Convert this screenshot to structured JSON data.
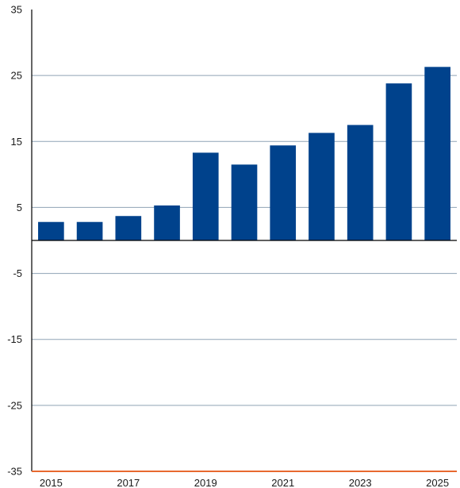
{
  "chart_data": {
    "type": "bar",
    "categories": [
      "2015",
      "2016",
      "2017",
      "2018",
      "2019",
      "2020",
      "2021",
      "2022",
      "2023",
      "2024",
      "2025"
    ],
    "values": [
      2.8,
      2.8,
      3.7,
      5.3,
      13.3,
      11.5,
      14.4,
      16.3,
      17.5,
      23.8,
      26.3
    ],
    "x_tick_labels": [
      "2015",
      "",
      "2017",
      "",
      "2019",
      "",
      "2021",
      "",
      "2023",
      "",
      "2025"
    ],
    "y_ticks": [
      35,
      25,
      15,
      5,
      -5,
      -15,
      -25,
      -35
    ],
    "ylim": [
      -35,
      35
    ],
    "grid": true,
    "colors": {
      "bar": "#00428c",
      "grid": "#8fa3b5",
      "zero_line": "#000000",
      "axis": "#000000",
      "baseline": "#e8692f"
    }
  }
}
